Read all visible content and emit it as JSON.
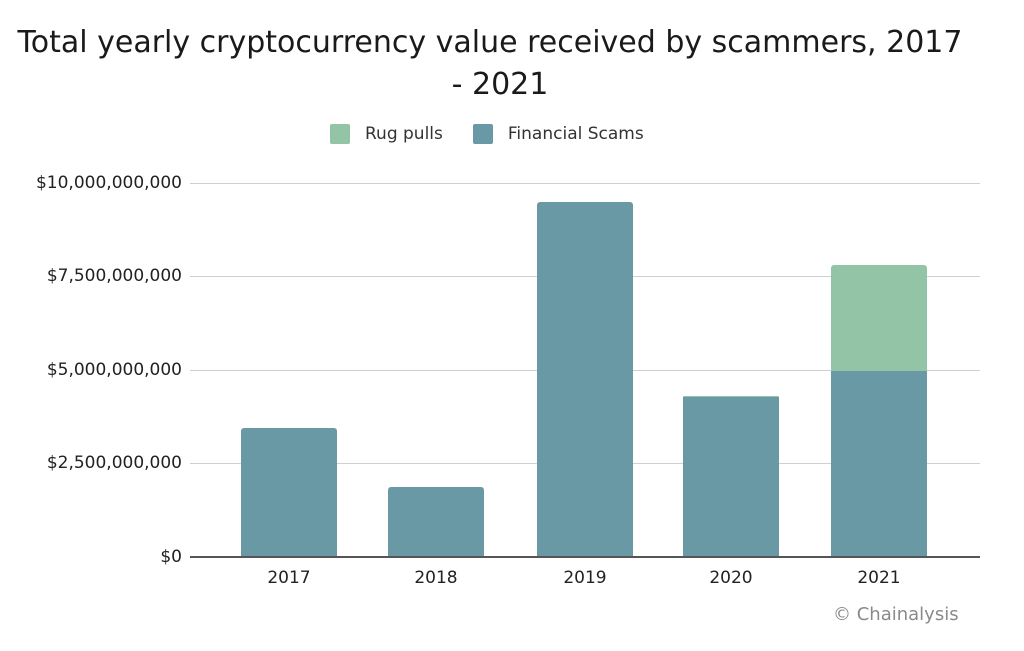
{
  "chart_data": {
    "type": "bar",
    "stacked": true,
    "title": "Total yearly cryptocurrency value received by scammers, 2017 - 2021",
    "title_lines": [
      "Total yearly cryptocurrency value received by scammers, 2017",
      "- 2021"
    ],
    "categories": [
      "2017",
      "2018",
      "2019",
      "2020",
      "2021"
    ],
    "series": [
      {
        "name": "Financial Scams",
        "color": "#6899a4",
        "values": [
          3420000000,
          1840000000,
          9490000000,
          4250000000,
          4950000000
        ]
      },
      {
        "name": "Rug pulls",
        "color": "#93c4a6",
        "values": [
          0,
          0,
          0,
          50000000,
          2850000000
        ]
      }
    ],
    "legend": [
      {
        "name": "Rug pulls",
        "color": "#93c4a6"
      },
      {
        "name": "Financial Scams",
        "color": "#6899a4"
      }
    ],
    "legend_position": "top",
    "xlabel": "",
    "ylabel": "",
    "ylim": [
      0,
      10000000000
    ],
    "yticks": [
      0,
      2500000000,
      5000000000,
      7500000000,
      10000000000
    ],
    "ytick_labels": [
      "$0",
      "$2,500,000,000",
      "$5,000,000,000",
      "$7,500,000,000",
      "$10,000,000,000"
    ],
    "grid": true,
    "annotation": "© Chainalysis"
  }
}
